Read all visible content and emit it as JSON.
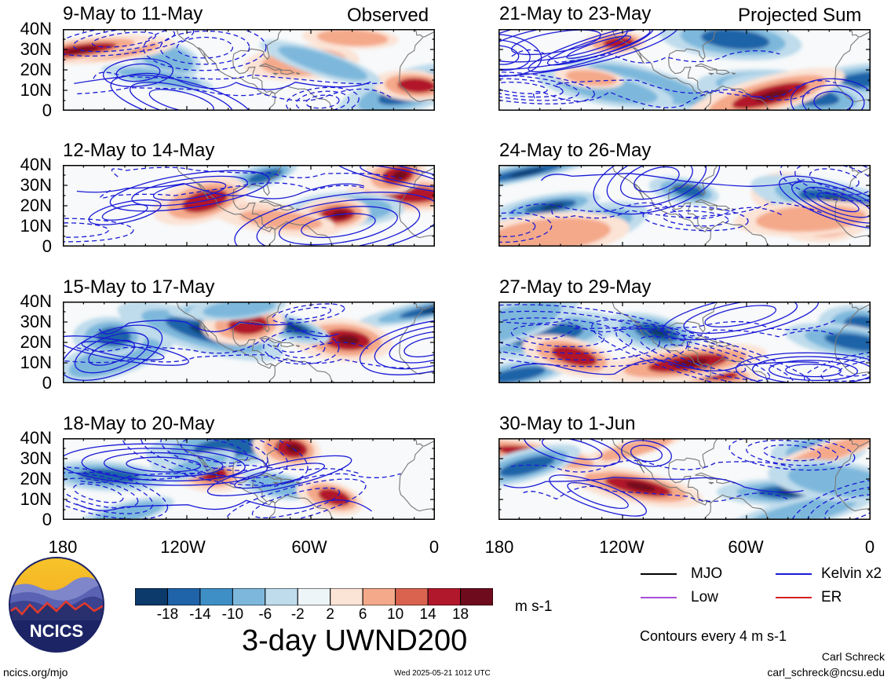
{
  "panels": {
    "left": [
      {
        "title": "9-May to 11-May",
        "corner": "Observed"
      },
      {
        "title": "12-May to 14-May",
        "corner": ""
      },
      {
        "title": "15-May to 17-May",
        "corner": ""
      },
      {
        "title": "18-May to 20-May",
        "corner": ""
      }
    ],
    "right": [
      {
        "title": "21-May to 23-May",
        "corner": "Projected Sum"
      },
      {
        "title": "24-May to 26-May",
        "corner": ""
      },
      {
        "title": "27-May to 29-May",
        "corner": ""
      },
      {
        "title": "30-May to 1-Jun",
        "corner": ""
      }
    ]
  },
  "y_ticks": [
    "40N",
    "30N",
    "20N",
    "10N",
    "0"
  ],
  "x_ticks": [
    "180",
    "120W",
    "60W",
    "0"
  ],
  "colorbar": {
    "labels": [
      "-18",
      "-14",
      "-10",
      "-6",
      "-2",
      "2",
      "6",
      "10",
      "14",
      "18"
    ],
    "units": "m s-1",
    "colors": [
      "#0b3a6b",
      "#1f63a8",
      "#3f8fc7",
      "#7db8dc",
      "#bfdcec",
      "#eef5f9",
      "#fbe3d5",
      "#f4a98a",
      "#d9634f",
      "#b2182b",
      "#6e0b1c"
    ]
  },
  "field_title": "3-day UWND200",
  "legend": {
    "items": [
      {
        "label": "MJO",
        "color": "#000000"
      },
      {
        "label": "Kelvin x2",
        "color": "#1a1ad6"
      },
      {
        "label": "Low",
        "color": "#a64dd6"
      },
      {
        "label": "ER",
        "color": "#d62020"
      }
    ],
    "note": "Contours every 4 m s-1"
  },
  "logo": {
    "text": "NCICS"
  },
  "footer": {
    "url": "ncics.org/mjo",
    "timestamp": "Wed 2025-05-21 1012 UTC",
    "author": "Carl Schreck",
    "email": "carl_schreck@ncsu.edu"
  }
}
